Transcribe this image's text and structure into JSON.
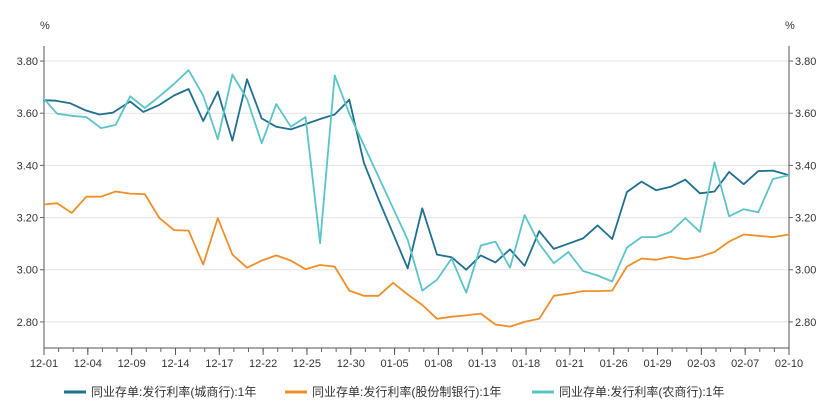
{
  "chart_data": {
    "type": "line",
    "title": "",
    "xlabel": "",
    "ylabel": "",
    "y_unit_left": "%",
    "y_unit_right": "%",
    "ylim": [
      2.7,
      3.85
    ],
    "yticks": [
      "2.80",
      "3.00",
      "3.20",
      "3.40",
      "3.60",
      "3.80"
    ],
    "xtick_labels": [
      "12-01",
      "12-04",
      "12-09",
      "12-14",
      "12-17",
      "12-22",
      "12-25",
      "12-30",
      "01-05",
      "01-08",
      "01-13",
      "01-18",
      "01-21",
      "01-26",
      "01-29",
      "02-03",
      "02-07",
      "02-10"
    ],
    "grid": true,
    "legend_position": "bottom",
    "series": [
      {
        "name": "同业存单:发行利率(城商行):1年",
        "color": "#1f6f91",
        "points": [
          [
            0,
            3.65
          ],
          [
            0.8,
            3.648
          ],
          [
            1.8,
            3.638
          ],
          [
            2.8,
            3.612
          ],
          [
            3.8,
            3.595
          ],
          [
            4.7,
            3.602
          ],
          [
            5.9,
            3.645
          ],
          [
            6.8,
            3.605
          ],
          [
            7.9,
            3.632
          ],
          [
            8.9,
            3.668
          ],
          [
            9.9,
            3.693
          ],
          [
            10.9,
            3.57
          ],
          [
            11.9,
            3.683
          ],
          [
            12.9,
            3.495
          ],
          [
            13.9,
            3.73
          ],
          [
            14.9,
            3.58
          ],
          [
            15.9,
            3.548
          ],
          [
            16.9,
            3.538
          ],
          [
            17.9,
            3.558
          ],
          [
            18.9,
            3.578
          ],
          [
            19.9,
            3.595
          ],
          [
            20.9,
            3.652
          ],
          [
            21.9,
            3.41
          ],
          [
            22.9,
            3.27
          ],
          [
            23.9,
            3.138
          ],
          [
            24.9,
            3.005
          ],
          [
            25.9,
            3.235
          ],
          [
            26.9,
            3.058
          ],
          [
            27.9,
            3.048
          ],
          [
            28.9,
            3.0
          ],
          [
            29.9,
            3.055
          ],
          [
            30.9,
            3.028
          ],
          [
            31.9,
            3.078
          ],
          [
            32.9,
            3.015
          ],
          [
            33.9,
            3.148
          ],
          [
            34.9,
            3.08
          ],
          [
            35.9,
            3.1
          ],
          [
            36.9,
            3.12
          ],
          [
            37.9,
            3.17
          ],
          [
            38.9,
            3.118
          ],
          [
            39.9,
            3.298
          ],
          [
            40.9,
            3.338
          ],
          [
            41.9,
            3.305
          ],
          [
            42.9,
            3.318
          ],
          [
            43.9,
            3.345
          ],
          [
            44.9,
            3.293
          ],
          [
            45.9,
            3.3
          ],
          [
            46.9,
            3.375
          ],
          [
            47.9,
            3.328
          ],
          [
            48.9,
            3.378
          ],
          [
            49.9,
            3.38
          ],
          [
            51,
            3.362
          ]
        ]
      },
      {
        "name": "同业存单:发行利率(股份制银行):1年",
        "color": "#ee8f2a",
        "points": [
          [
            0,
            3.25
          ],
          [
            0.9,
            3.255
          ],
          [
            1.9,
            3.218
          ],
          [
            2.9,
            3.28
          ],
          [
            3.9,
            3.28
          ],
          [
            4.9,
            3.3
          ],
          [
            5.9,
            3.292
          ],
          [
            6.9,
            3.29
          ],
          [
            7.9,
            3.198
          ],
          [
            8.9,
            3.152
          ],
          [
            9.9,
            3.15
          ],
          [
            10.9,
            3.02
          ],
          [
            11.9,
            3.198
          ],
          [
            12.9,
            3.058
          ],
          [
            13.9,
            3.008
          ],
          [
            14.9,
            3.035
          ],
          [
            15.9,
            3.055
          ],
          [
            16.9,
            3.035
          ],
          [
            17.9,
            3.002
          ],
          [
            18.9,
            3.018
          ],
          [
            19.9,
            3.012
          ],
          [
            20.9,
            2.92
          ],
          [
            21.9,
            2.9
          ],
          [
            22.9,
            2.9
          ],
          [
            23.9,
            2.95
          ],
          [
            24.9,
            2.905
          ],
          [
            25.9,
            2.865
          ],
          [
            26.9,
            2.812
          ],
          [
            27.9,
            2.82
          ],
          [
            28.9,
            2.825
          ],
          [
            29.9,
            2.832
          ],
          [
            30.9,
            2.79
          ],
          [
            31.9,
            2.782
          ],
          [
            32.9,
            2.8
          ],
          [
            33.9,
            2.812
          ],
          [
            34.9,
            2.9
          ],
          [
            35.9,
            2.908
          ],
          [
            36.9,
            2.918
          ],
          [
            37.9,
            2.918
          ],
          [
            38.9,
            2.92
          ],
          [
            39.9,
            3.012
          ],
          [
            40.9,
            3.043
          ],
          [
            41.9,
            3.038
          ],
          [
            42.9,
            3.05
          ],
          [
            43.9,
            3.04
          ],
          [
            44.9,
            3.05
          ],
          [
            45.9,
            3.068
          ],
          [
            46.9,
            3.108
          ],
          [
            47.9,
            3.135
          ],
          [
            48.9,
            3.13
          ],
          [
            49.9,
            3.125
          ],
          [
            51,
            3.135
          ]
        ]
      },
      {
        "name": "同业存单:发行利率(农商行):1年",
        "color": "#5bc4c8",
        "points": [
          [
            0,
            3.655
          ],
          [
            0.9,
            3.598
          ],
          [
            1.9,
            3.59
          ],
          [
            2.9,
            3.585
          ],
          [
            3.9,
            3.543
          ],
          [
            4.9,
            3.555
          ],
          [
            5.9,
            3.665
          ],
          [
            6.9,
            3.62
          ],
          [
            7.9,
            3.665
          ],
          [
            8.9,
            3.712
          ],
          [
            9.9,
            3.765
          ],
          [
            10.9,
            3.668
          ],
          [
            11.9,
            3.5
          ],
          [
            12.9,
            3.748
          ],
          [
            13.9,
            3.655
          ],
          [
            14.9,
            3.485
          ],
          [
            15.9,
            3.635
          ],
          [
            16.9,
            3.548
          ],
          [
            17.9,
            3.585
          ],
          [
            18.9,
            3.102
          ],
          [
            19.9,
            3.745
          ],
          [
            20.9,
            3.598
          ],
          [
            24.9,
            3.115
          ],
          [
            25.9,
            2.92
          ],
          [
            26.9,
            2.962
          ],
          [
            27.9,
            3.043
          ],
          [
            28.9,
            2.912
          ],
          [
            29.9,
            3.093
          ],
          [
            30.9,
            3.108
          ],
          [
            31.9,
            3.008
          ],
          [
            32.9,
            3.21
          ],
          [
            33.9,
            3.1
          ],
          [
            34.9,
            3.025
          ],
          [
            35.9,
            3.068
          ],
          [
            36.9,
            2.995
          ],
          [
            37.9,
            2.978
          ],
          [
            38.9,
            2.955
          ],
          [
            39.9,
            3.085
          ],
          [
            40.9,
            3.125
          ],
          [
            41.9,
            3.125
          ],
          [
            42.9,
            3.145
          ],
          [
            43.9,
            3.198
          ],
          [
            44.9,
            3.145
          ],
          [
            45.9,
            3.412
          ],
          [
            46.9,
            3.205
          ],
          [
            47.9,
            3.232
          ],
          [
            48.9,
            3.22
          ],
          [
            49.9,
            3.348
          ],
          [
            51,
            3.362
          ]
        ]
      }
    ]
  }
}
